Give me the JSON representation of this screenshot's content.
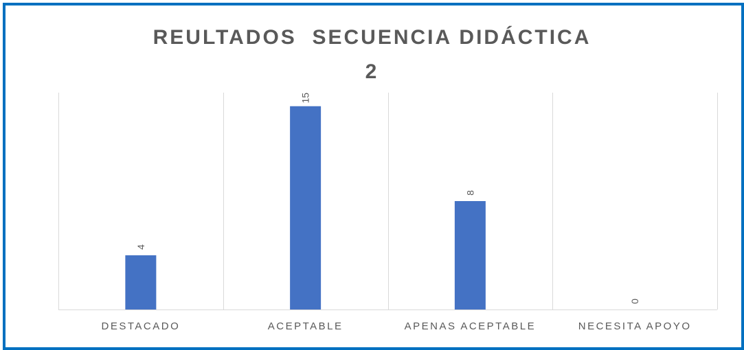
{
  "chart_data": {
    "type": "bar",
    "title_lines": [
      "REULTADOS  SECUENCIA DIDÁCTICA",
      "2"
    ],
    "categories": [
      "DESTACADO",
      "ACEPTABLE",
      "APENAS ACEPTABLE",
      "NECESITA APOYO"
    ],
    "values": [
      4,
      15,
      8,
      0
    ],
    "data_labels": [
      "4",
      "15",
      "8",
      "0"
    ],
    "ylim": [
      0,
      16
    ],
    "grid": "vertical category separators",
    "legend": "none",
    "bar_color": "#4472c4",
    "frame_color": "#0070c0"
  }
}
